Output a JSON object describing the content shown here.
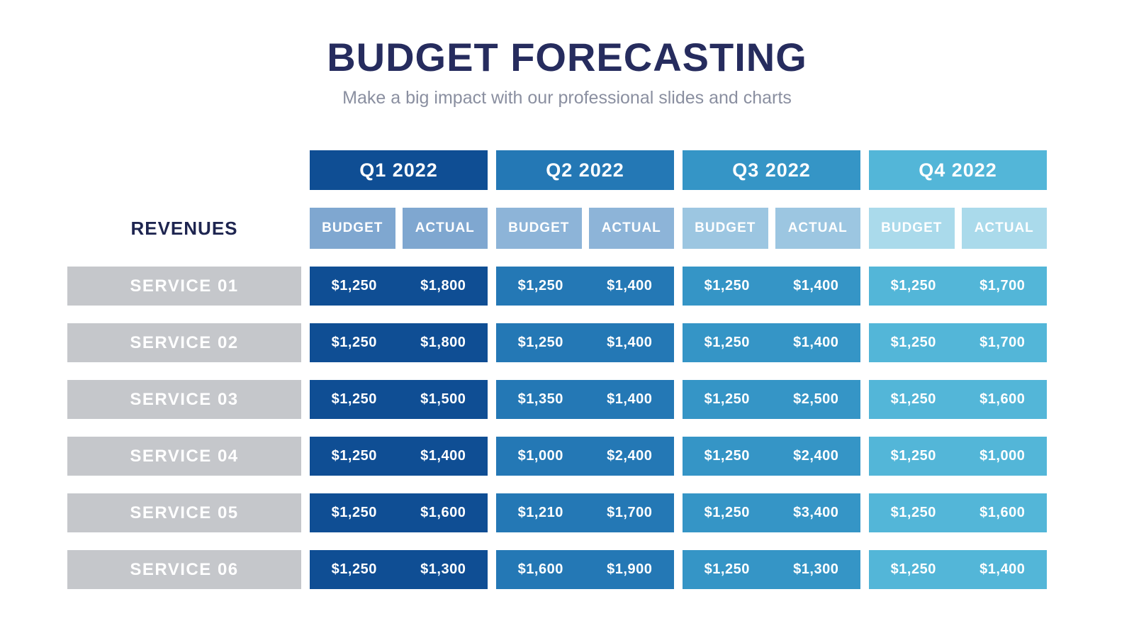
{
  "header": {
    "title": "BUDGET FORECASTING",
    "subtitle": "Make a big impact with our professional slides and charts"
  },
  "colors": {
    "title_navy": "#262c5e",
    "subtitle_gray": "#8a8fa0",
    "q1_main": "#0f4e94",
    "q2_main": "#2478b5",
    "q3_main": "#3595c6",
    "q4_main": "#53b6d8",
    "q1_sub": "#7fa7d0",
    "q2_sub": "#8db4d8",
    "q3_sub": "#9cc6e1",
    "q4_sub": "#aadaeb",
    "service_label_bg": "#c5c7cb",
    "revenues_text": "#1e2550"
  },
  "table": {
    "row_group_label": "REVENUES",
    "quarters": [
      {
        "label": "Q1 2022",
        "budget_label": "BUDGET",
        "actual_label": "ACTUAL"
      },
      {
        "label": "Q2 2022",
        "budget_label": "BUDGET",
        "actual_label": "ACTUAL"
      },
      {
        "label": "Q3 2022",
        "budget_label": "BUDGET",
        "actual_label": "ACTUAL"
      },
      {
        "label": "Q4 2022",
        "budget_label": "BUDGET",
        "actual_label": "ACTUAL"
      }
    ],
    "rows": [
      {
        "label": "SERVICE 01",
        "cells": [
          {
            "budget": "$1,250",
            "actual": "$1,800"
          },
          {
            "budget": "$1,250",
            "actual": "$1,400"
          },
          {
            "budget": "$1,250",
            "actual": "$1,400"
          },
          {
            "budget": "$1,250",
            "actual": "$1,700"
          }
        ]
      },
      {
        "label": "SERVICE 02",
        "cells": [
          {
            "budget": "$1,250",
            "actual": "$1,800"
          },
          {
            "budget": "$1,250",
            "actual": "$1,400"
          },
          {
            "budget": "$1,250",
            "actual": "$1,400"
          },
          {
            "budget": "$1,250",
            "actual": "$1,700"
          }
        ]
      },
      {
        "label": "SERVICE 03",
        "cells": [
          {
            "budget": "$1,250",
            "actual": "$1,500"
          },
          {
            "budget": "$1,350",
            "actual": "$1,400"
          },
          {
            "budget": "$1,250",
            "actual": "$2,500"
          },
          {
            "budget": "$1,250",
            "actual": "$1,600"
          }
        ]
      },
      {
        "label": "SERVICE 04",
        "cells": [
          {
            "budget": "$1,250",
            "actual": "$1,400"
          },
          {
            "budget": "$1,000",
            "actual": "$2,400"
          },
          {
            "budget": "$1,250",
            "actual": "$2,400"
          },
          {
            "budget": "$1,250",
            "actual": "$1,000"
          }
        ]
      },
      {
        "label": "SERVICE 05",
        "cells": [
          {
            "budget": "$1,250",
            "actual": "$1,600"
          },
          {
            "budget": "$1,210",
            "actual": "$1,700"
          },
          {
            "budget": "$1,250",
            "actual": "$3,400"
          },
          {
            "budget": "$1,250",
            "actual": "$1,600"
          }
        ]
      },
      {
        "label": "SERVICE 06",
        "cells": [
          {
            "budget": "$1,250",
            "actual": "$1,300"
          },
          {
            "budget": "$1,600",
            "actual": "$1,900"
          },
          {
            "budget": "$1,250",
            "actual": "$1,300"
          },
          {
            "budget": "$1,250",
            "actual": "$1,400"
          }
        ]
      }
    ]
  },
  "chart_data": {
    "type": "table",
    "title": "BUDGET FORECASTING",
    "subtitle": "Make a big impact with our professional slides and charts",
    "row_group_label": "REVENUES",
    "column_groups": [
      "Q1 2022",
      "Q2 2022",
      "Q3 2022",
      "Q4 2022"
    ],
    "sub_columns": [
      "BUDGET",
      "ACTUAL"
    ],
    "rows": [
      {
        "label": "SERVICE 01",
        "q1": {
          "budget": 1250,
          "actual": 1800
        },
        "q2": {
          "budget": 1250,
          "actual": 1400
        },
        "q3": {
          "budget": 1250,
          "actual": 1400
        },
        "q4": {
          "budget": 1250,
          "actual": 1700
        }
      },
      {
        "label": "SERVICE 02",
        "q1": {
          "budget": 1250,
          "actual": 1800
        },
        "q2": {
          "budget": 1250,
          "actual": 1400
        },
        "q3": {
          "budget": 1250,
          "actual": 1400
        },
        "q4": {
          "budget": 1250,
          "actual": 1700
        }
      },
      {
        "label": "SERVICE 03",
        "q1": {
          "budget": 1250,
          "actual": 1500
        },
        "q2": {
          "budget": 1350,
          "actual": 1400
        },
        "q3": {
          "budget": 1250,
          "actual": 2500
        },
        "q4": {
          "budget": 1250,
          "actual": 1600
        }
      },
      {
        "label": "SERVICE 04",
        "q1": {
          "budget": 1250,
          "actual": 1400
        },
        "q2": {
          "budget": 1000,
          "actual": 2400
        },
        "q3": {
          "budget": 1250,
          "actual": 2400
        },
        "q4": {
          "budget": 1250,
          "actual": 1000
        }
      },
      {
        "label": "SERVICE 05",
        "q1": {
          "budget": 1250,
          "actual": 1600
        },
        "q2": {
          "budget": 1210,
          "actual": 1700
        },
        "q3": {
          "budget": 1250,
          "actual": 3400
        },
        "q4": {
          "budget": 1250,
          "actual": 1600
        }
      },
      {
        "label": "SERVICE 06",
        "q1": {
          "budget": 1250,
          "actual": 1300
        },
        "q2": {
          "budget": 1600,
          "actual": 1900
        },
        "q3": {
          "budget": 1250,
          "actual": 1300
        },
        "q4": {
          "budget": 1250,
          "actual": 1400
        }
      }
    ]
  }
}
